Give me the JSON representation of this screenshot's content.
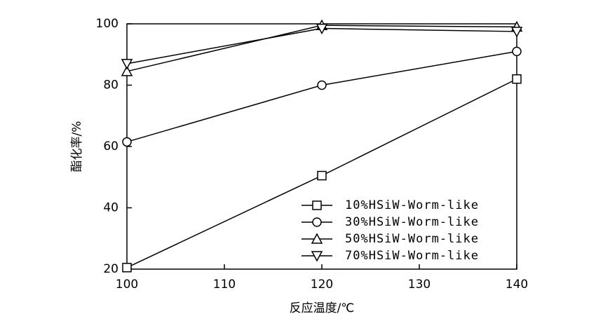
{
  "chart_data": {
    "type": "line",
    "x_label": "反应温度/℃",
    "y_label": "酯化率/%",
    "x": [
      100,
      120,
      140
    ],
    "series": [
      {
        "name": "10%HSiW-Worm-like",
        "color": "#000000",
        "marker": "square",
        "values": [
          20.5,
          50.5,
          82
        ]
      },
      {
        "name": "30%HSiW-Worm-like",
        "color": "#000000",
        "marker": "circle",
        "values": [
          61.5,
          80,
          91
        ]
      },
      {
        "name": "50%HSiW-Worm-like",
        "color": "#000000",
        "marker": "triangle-up",
        "values": [
          84.5,
          99.5,
          99
        ]
      },
      {
        "name": "70%HSiW-Worm-like",
        "color": "#000000",
        "marker": "triangle-down",
        "values": [
          87,
          98.5,
          97.5
        ]
      }
    ],
    "xlim": [
      100,
      140
    ],
    "xticks": [
      100,
      110,
      120,
      130,
      140
    ],
    "ylim": [
      20,
      100
    ],
    "yticks": [
      20,
      40,
      60,
      80,
      100
    ],
    "grid": false,
    "legend_position": "lower-right"
  }
}
